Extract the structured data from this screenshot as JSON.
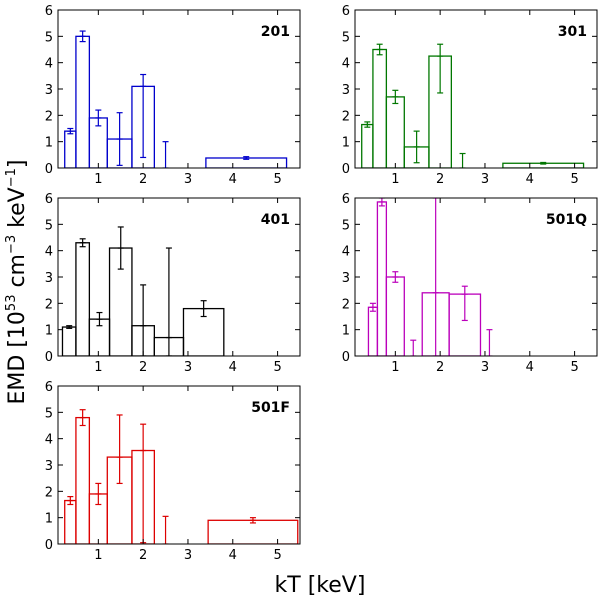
{
  "chart_data": {
    "type": "bar",
    "xlabel": "kT [keV]",
    "ylabel_parts": {
      "prefix": "EMD [10",
      "exp1": "53",
      "mid": " cm",
      "exp2": "−3",
      "unit": " keV",
      "exp3": "−1",
      "suffix": "]"
    },
    "xlim": [
      0.1,
      5.5
    ],
    "ylim": [
      0,
      6
    ],
    "xticks": [
      1,
      2,
      3,
      4,
      5
    ],
    "yticks": [
      0,
      1,
      2,
      3,
      4,
      5,
      6
    ],
    "xtick_labels": [
      "1",
      "2",
      "3",
      "4",
      "5"
    ],
    "ytick_labels": [
      "0",
      "1",
      "2",
      "3",
      "4",
      "5",
      "6"
    ],
    "panels": [
      {
        "name": "201",
        "color": "#0000cc",
        "bins": [
          {
            "x0": 0.25,
            "x1": 0.5,
            "y": 1.4,
            "err": 0.1
          },
          {
            "x0": 0.5,
            "x1": 0.8,
            "y": 5.0,
            "err": 0.2
          },
          {
            "x0": 0.8,
            "x1": 1.2,
            "y": 1.9,
            "err": 0.3
          },
          {
            "x0": 1.2,
            "x1": 1.75,
            "y": 1.1,
            "err": 1.0
          },
          {
            "x0": 1.75,
            "x1": 2.25,
            "y": 3.1,
            "err": 0.45,
            "err_lo": 2.7
          },
          {
            "x0": 2.25,
            "x1": 2.75,
            "y": 0.0,
            "err_up": 1.0
          },
          {
            "x0": 3.4,
            "x1": 5.2,
            "y": 0.38,
            "err": 0.05
          }
        ]
      },
      {
        "name": "301",
        "color": "#007700",
        "bins": [
          {
            "x0": 0.25,
            "x1": 0.5,
            "y": 1.65,
            "err": 0.1
          },
          {
            "x0": 0.5,
            "x1": 0.8,
            "y": 4.5,
            "err": 0.2
          },
          {
            "x0": 0.8,
            "x1": 1.2,
            "y": 2.7,
            "err": 0.25
          },
          {
            "x0": 1.2,
            "x1": 1.75,
            "y": 0.8,
            "err": 0.6
          },
          {
            "x0": 1.75,
            "x1": 2.25,
            "y": 4.25,
            "err": 0.45,
            "err_lo": 1.4
          },
          {
            "x0": 2.25,
            "x1": 2.75,
            "y": 0.0,
            "err_up": 0.55
          },
          {
            "x0": 3.4,
            "x1": 5.2,
            "y": 0.18,
            "err": 0.03
          }
        ]
      },
      {
        "name": "401",
        "color": "#000000",
        "bins": [
          {
            "x0": 0.2,
            "x1": 0.5,
            "y": 1.1,
            "err": 0.05
          },
          {
            "x0": 0.5,
            "x1": 0.8,
            "y": 4.3,
            "err": 0.15
          },
          {
            "x0": 0.8,
            "x1": 1.25,
            "y": 1.4,
            "err": 0.25
          },
          {
            "x0": 1.25,
            "x1": 1.75,
            "y": 4.1,
            "err": 0.8
          },
          {
            "x0": 1.75,
            "x1": 2.25,
            "y": 1.15,
            "err": 1.55,
            "err_lo": 1.15
          },
          {
            "x0": 2.25,
            "x1": 2.9,
            "y": 0.7,
            "err": 3.4,
            "err_lo": 0.7
          },
          {
            "x0": 2.9,
            "x1": 3.8,
            "y": 1.8,
            "err": 0.3
          }
        ]
      },
      {
        "name": "501Q",
        "color": "#bb00bb",
        "bins": [
          {
            "x0": 0.4,
            "x1": 0.6,
            "y": 1.85,
            "err": 0.15
          },
          {
            "x0": 0.6,
            "x1": 0.8,
            "y": 5.85,
            "err": 0.15
          },
          {
            "x0": 0.8,
            "x1": 1.2,
            "y": 3.0,
            "err": 0.2
          },
          {
            "x0": 1.2,
            "x1": 1.6,
            "y": 0.0,
            "err_up": 0.6
          },
          {
            "x0": 1.6,
            "x1": 2.2,
            "y": 2.4,
            "err": 3.6,
            "err_lo": 2.4
          },
          {
            "x0": 2.2,
            "x1": 2.9,
            "y": 2.35,
            "err": 0.3,
            "err_lo": 1.0
          },
          {
            "x0": 2.9,
            "x1": 3.3,
            "y": 0.0,
            "err_up": 1.0
          },
          {
            "x0": 3.3,
            "x1": 3.7,
            "y": 0.0
          }
        ]
      },
      {
        "name": "501F",
        "color": "#dd0000",
        "bins": [
          {
            "x0": 0.25,
            "x1": 0.5,
            "y": 1.65,
            "err": 0.15
          },
          {
            "x0": 0.5,
            "x1": 0.8,
            "y": 4.8,
            "err": 0.3
          },
          {
            "x0": 0.8,
            "x1": 1.2,
            "y": 1.9,
            "err": 0.4
          },
          {
            "x0": 1.2,
            "x1": 1.75,
            "y": 3.3,
            "err": 1.6,
            "err_lo": 1.0
          },
          {
            "x0": 1.75,
            "x1": 2.25,
            "y": 3.55,
            "err": 1.0,
            "err_lo": 3.5
          },
          {
            "x0": 2.25,
            "x1": 2.75,
            "y": 0.0,
            "err_up": 1.05
          },
          {
            "x0": 3.45,
            "x1": 5.45,
            "y": 0.9,
            "err": 0.1
          }
        ]
      }
    ]
  }
}
